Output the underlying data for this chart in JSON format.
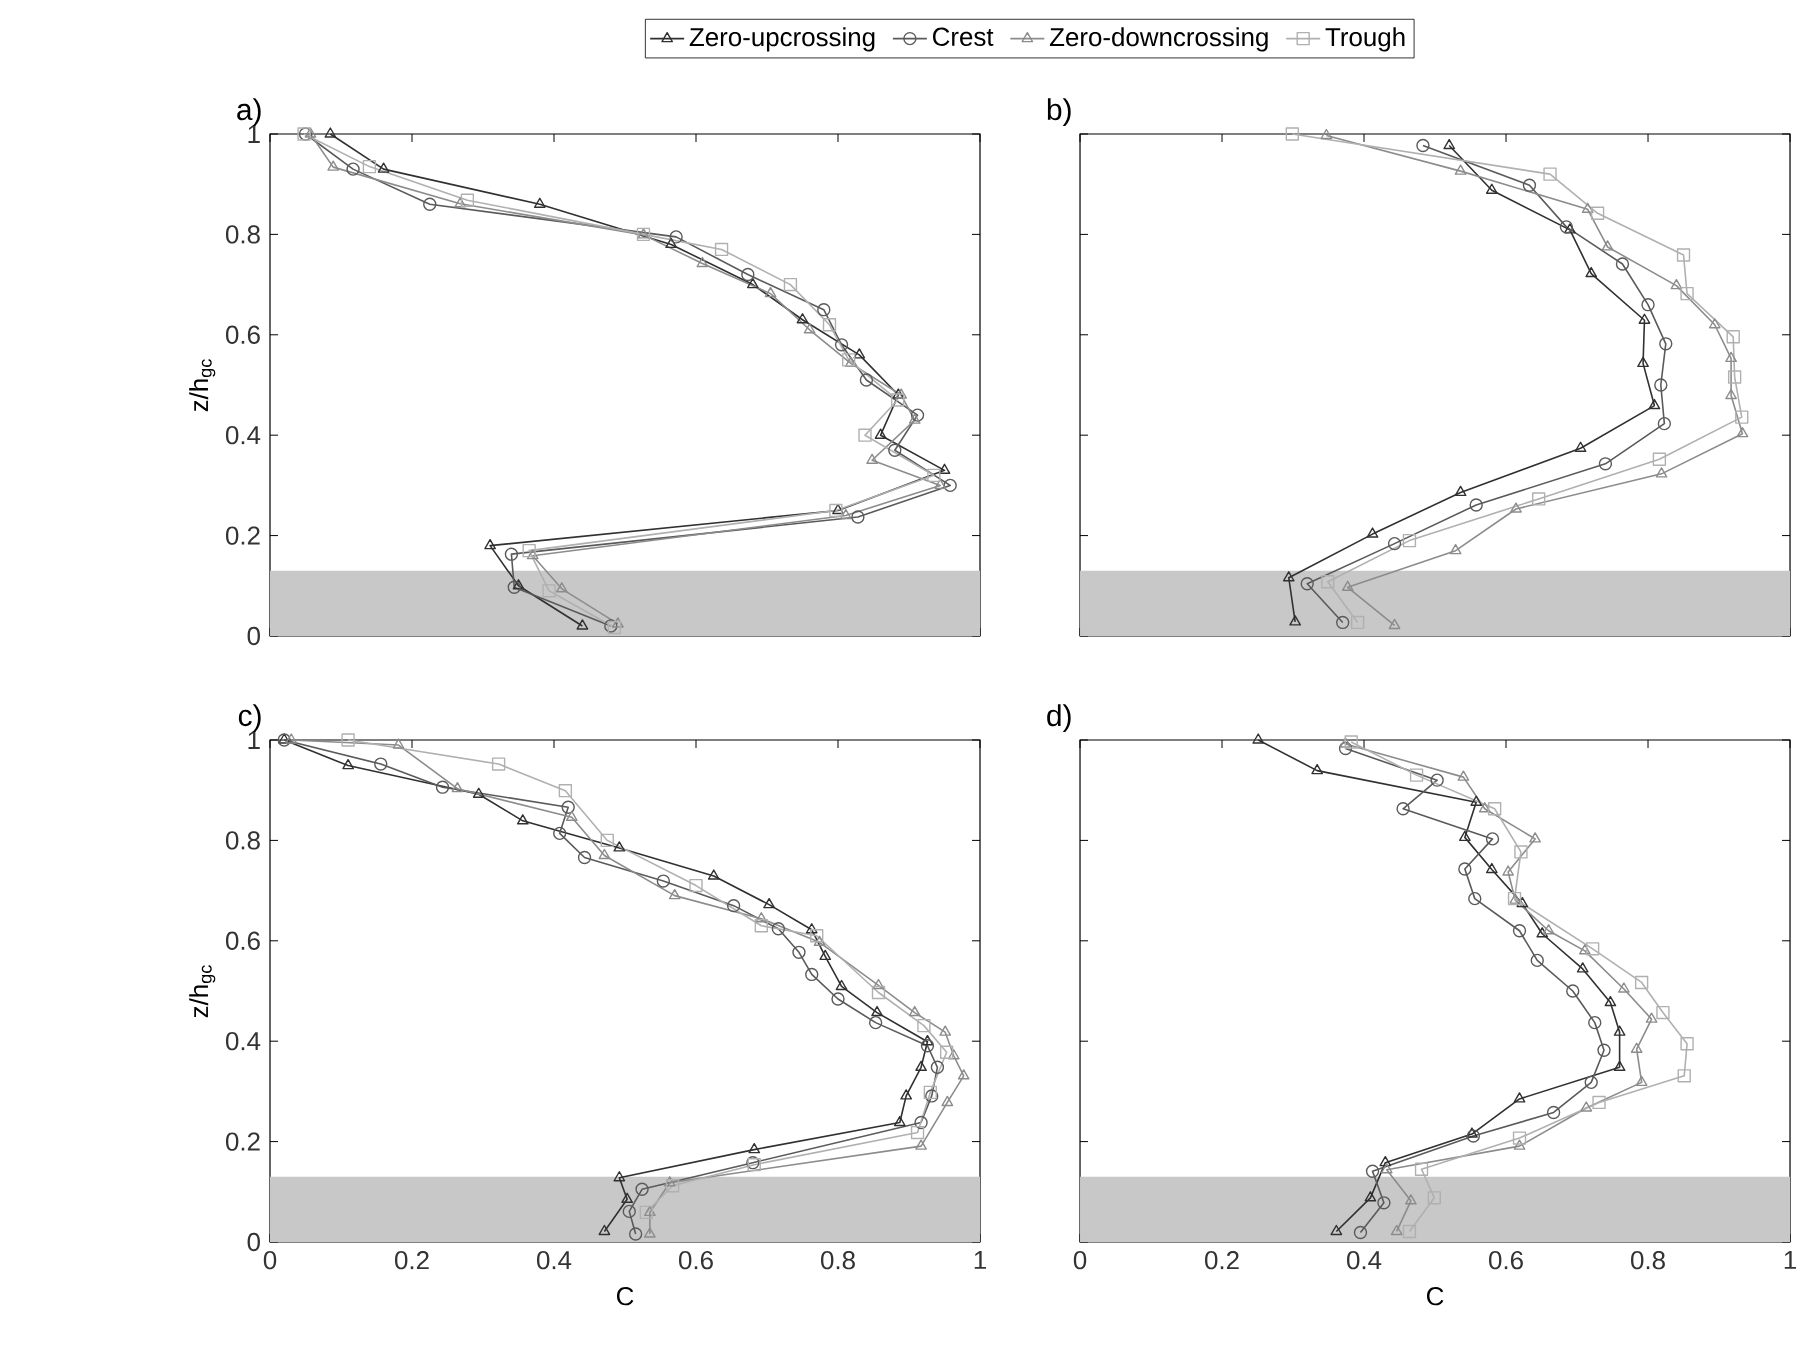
{
  "chart_data": [
    {
      "type": "line",
      "title": "a)",
      "ylabel": "z/h$_{gc}$",
      "xlim": [
        0,
        1
      ],
      "ylim": [
        0,
        1
      ],
      "xticks": [
        0,
        0.2,
        0.4,
        0.6,
        0.8,
        1
      ],
      "yticks": [
        0,
        0.2,
        0.4,
        0.6,
        0.8,
        1
      ],
      "tick_labels": "y",
      "legend": "top",
      "bands": [
        {
          "axis": "y",
          "from": 0,
          "to": 0.13,
          "color": "#c8c8c8"
        }
      ],
      "series": [
        {
          "name": "Zero-upcrossing",
          "color": "#303030",
          "marker": "triangle",
          "x": [
            0.085,
            0.16,
            0.38,
            0.565,
            0.68,
            0.75,
            0.83,
            0.885,
            0.86,
            0.95,
            0.8,
            0.31,
            0.35,
            0.44
          ],
          "values": [
            1.0,
            0.93,
            0.86,
            0.78,
            0.7,
            0.63,
            0.56,
            0.48,
            0.4,
            0.33,
            0.25,
            0.18,
            0.1,
            0.02
          ]
        },
        {
          "name": "Crest",
          "color": "#5a5a5a",
          "marker": "circle",
          "x": [
            0.05,
            0.117,
            0.225,
            0.572,
            0.673,
            0.78,
            0.805,
            0.84,
            0.912,
            0.88,
            0.958,
            0.828,
            0.34,
            0.344,
            0.48
          ],
          "values": [
            1.0,
            0.93,
            0.86,
            0.795,
            0.72,
            0.65,
            0.58,
            0.51,
            0.44,
            0.37,
            0.3,
            0.237,
            0.163,
            0.097,
            0.02
          ]
        },
        {
          "name": "Zero-downcrossing",
          "color": "#8c8c8c",
          "marker": "triangle",
          "x": [
            0.057,
            0.089,
            0.268,
            0.526,
            0.609,
            0.705,
            0.76,
            0.818,
            0.889,
            0.908,
            0.848,
            0.944,
            0.811,
            0.37,
            0.411,
            0.49
          ],
          "values": [
            1.0,
            0.934,
            0.861,
            0.799,
            0.742,
            0.682,
            0.61,
            0.543,
            0.48,
            0.43,
            0.35,
            0.3,
            0.24,
            0.16,
            0.094,
            0.024
          ]
        },
        {
          "name": "Trough",
          "color": "#b0b0b0",
          "marker": "square",
          "x": [
            0.048,
            0.14,
            0.278,
            0.526,
            0.636,
            0.733,
            0.788,
            0.815,
            0.884,
            0.838,
            0.935,
            0.797,
            0.365,
            0.393,
            0.485
          ],
          "values": [
            1.0,
            0.935,
            0.868,
            0.8,
            0.77,
            0.7,
            0.62,
            0.55,
            0.47,
            0.4,
            0.32,
            0.25,
            0.17,
            0.09,
            0.017
          ]
        }
      ]
    },
    {
      "type": "line",
      "title": "b)",
      "xlim": [
        0,
        1
      ],
      "ylim": [
        0,
        1
      ],
      "xticks": [
        0,
        0.2,
        0.4,
        0.6,
        0.8,
        1
      ],
      "yticks": [
        0,
        0.2,
        0.4,
        0.6,
        0.8,
        1
      ],
      "tick_labels": false,
      "bands": [
        {
          "axis": "y",
          "from": 0,
          "to": 0.13,
          "color": "#c8c8c8"
        }
      ],
      "series": [
        {
          "color": "#303030",
          "marker": "triangle",
          "x": [
            0.52,
            0.58,
            0.69,
            0.72,
            0.795,
            0.793,
            0.809,
            0.705,
            0.536,
            0.412,
            0.294,
            0.303
          ],
          "values": [
            0.977,
            0.888,
            0.809,
            0.722,
            0.629,
            0.543,
            0.459,
            0.374,
            0.286,
            0.203,
            0.116,
            0.028
          ]
        },
        {
          "color": "#5a5a5a",
          "marker": "circle",
          "x": [
            0.483,
            0.633,
            0.685,
            0.764,
            0.8,
            0.825,
            0.818,
            0.823,
            0.74,
            0.558,
            0.443,
            0.32,
            0.37
          ],
          "values": [
            0.977,
            0.898,
            0.815,
            0.741,
            0.66,
            0.582,
            0.5,
            0.423,
            0.343,
            0.261,
            0.184,
            0.104,
            0.027
          ]
        },
        {
          "color": "#8c8c8c",
          "marker": "triangle",
          "x": [
            0.347,
            0.536,
            0.715,
            0.743,
            0.84,
            0.894,
            0.917,
            0.917,
            0.933,
            0.819,
            0.614,
            0.529,
            0.377,
            0.443
          ],
          "values": [
            0.997,
            0.926,
            0.85,
            0.775,
            0.698,
            0.62,
            0.553,
            0.479,
            0.403,
            0.323,
            0.253,
            0.17,
            0.097,
            0.021
          ]
        },
        {
          "color": "#b0b0b0",
          "marker": "square",
          "x": [
            0.299,
            0.662,
            0.729,
            0.85,
            0.855,
            0.92,
            0.922,
            0.932,
            0.816,
            0.646,
            0.464,
            0.349,
            0.391
          ],
          "values": [
            1.0,
            0.92,
            0.842,
            0.759,
            0.682,
            0.596,
            0.516,
            0.436,
            0.352,
            0.273,
            0.19,
            0.108,
            0.027
          ]
        }
      ]
    },
    {
      "type": "line",
      "title": "c)",
      "xlabel": "C",
      "ylabel": "z/h$_{gc}$",
      "xlim": [
        0,
        1
      ],
      "ylim": [
        0,
        1
      ],
      "xticks": [
        0,
        0.2,
        0.4,
        0.6,
        0.8,
        1
      ],
      "yticks": [
        0,
        0.2,
        0.4,
        0.6,
        0.8,
        1
      ],
      "bands": [
        {
          "axis": "y",
          "from": 0,
          "to": 0.13,
          "color": "#c8c8c8"
        }
      ],
      "series": [
        {
          "color": "#303030",
          "marker": "triangle",
          "x": [
            0.02,
            0.11,
            0.294,
            0.356,
            0.492,
            0.625,
            0.703,
            0.763,
            0.782,
            0.805,
            0.855,
            0.926,
            0.917,
            0.896,
            0.887,
            0.682,
            0.492,
            0.503,
            0.471
          ],
          "values": [
            1.0,
            0.949,
            0.892,
            0.839,
            0.785,
            0.729,
            0.672,
            0.622,
            0.569,
            0.509,
            0.457,
            0.399,
            0.348,
            0.291,
            0.238,
            0.184,
            0.128,
            0.085,
            0.021
          ]
        },
        {
          "color": "#5a5a5a",
          "marker": "circle",
          "x": [
            0.02,
            0.156,
            0.243,
            0.42,
            0.408,
            0.443,
            0.554,
            0.653,
            0.716,
            0.745,
            0.763,
            0.8,
            0.853,
            0.926,
            0.94,
            0.932,
            0.917,
            0.68,
            0.524,
            0.506,
            0.515
          ],
          "values": [
            1.0,
            0.952,
            0.906,
            0.866,
            0.814,
            0.766,
            0.719,
            0.67,
            0.624,
            0.577,
            0.533,
            0.484,
            0.437,
            0.391,
            0.348,
            0.291,
            0.238,
            0.158,
            0.105,
            0.061,
            0.016
          ]
        },
        {
          "color": "#8c8c8c",
          "marker": "triangle",
          "x": [
            0.03,
            0.181,
            0.264,
            0.425,
            0.471,
            0.57,
            0.692,
            0.774,
            0.857,
            0.908,
            0.951,
            0.963,
            0.977,
            0.954,
            0.917,
            0.563,
            0.535,
            0.535
          ],
          "values": [
            1.0,
            0.99,
            0.903,
            0.846,
            0.77,
            0.69,
            0.644,
            0.597,
            0.511,
            0.457,
            0.418,
            0.371,
            0.331,
            0.278,
            0.191,
            0.118,
            0.059,
            0.016
          ]
        },
        {
          "color": "#b0b0b0",
          "marker": "square",
          "x": [
            0.11,
            0.322,
            0.416,
            0.475,
            0.6,
            0.692,
            0.77,
            0.857,
            0.921,
            0.953,
            0.93,
            0.912,
            0.682,
            0.567,
            0.53
          ],
          "values": [
            1.0,
            0.952,
            0.899,
            0.8,
            0.71,
            0.63,
            0.61,
            0.497,
            0.431,
            0.378,
            0.298,
            0.218,
            0.154,
            0.112,
            0.059
          ]
        }
      ]
    },
    {
      "type": "line",
      "title": "d)",
      "xlabel": "C",
      "xlim": [
        0,
        1
      ],
      "ylim": [
        0,
        1
      ],
      "xticks": [
        0,
        0.2,
        0.4,
        0.6,
        0.8,
        1
      ],
      "yticks": [
        0,
        0.2,
        0.4,
        0.6,
        0.8,
        1
      ],
      "tick_labels": "x",
      "bands": [
        {
          "axis": "y",
          "from": 0,
          "to": 0.13,
          "color": "#c8c8c8"
        }
      ],
      "series": [
        {
          "color": "#303030",
          "marker": "triangle",
          "x": [
            0.251,
            0.334,
            0.558,
            0.542,
            0.58,
            0.623,
            0.651,
            0.708,
            0.747,
            0.76,
            0.76,
            0.619,
            0.552,
            0.43,
            0.409,
            0.361
          ],
          "values": [
            1.0,
            0.939,
            0.876,
            0.806,
            0.742,
            0.674,
            0.614,
            0.544,
            0.477,
            0.418,
            0.348,
            0.285,
            0.215,
            0.158,
            0.088,
            0.021
          ]
        },
        {
          "color": "#5a5a5a",
          "marker": "circle",
          "x": [
            0.374,
            0.503,
            0.455,
            0.581,
            0.542,
            0.556,
            0.619,
            0.644,
            0.694,
            0.725,
            0.738,
            0.72,
            0.667,
            0.554,
            0.412,
            0.428,
            0.395
          ],
          "values": [
            0.983,
            0.92,
            0.863,
            0.803,
            0.743,
            0.684,
            0.62,
            0.561,
            0.5,
            0.437,
            0.382,
            0.318,
            0.258,
            0.211,
            0.141,
            0.078,
            0.019
          ]
        },
        {
          "color": "#8c8c8c",
          "marker": "triangle",
          "x": [
            0.374,
            0.54,
            0.57,
            0.641,
            0.603,
            0.613,
            0.66,
            0.711,
            0.766,
            0.805,
            0.784,
            0.791,
            0.713,
            0.619,
            0.432,
            0.466,
            0.446
          ],
          "values": [
            0.992,
            0.926,
            0.863,
            0.803,
            0.737,
            0.681,
            0.62,
            0.58,
            0.504,
            0.444,
            0.384,
            0.318,
            0.267,
            0.191,
            0.144,
            0.082,
            0.021
          ]
        },
        {
          "color": "#b0b0b0",
          "marker": "square",
          "x": [
            0.382,
            0.474,
            0.584,
            0.621,
            0.612,
            0.722,
            0.791,
            0.821,
            0.855,
            0.851,
            0.731,
            0.619,
            0.481,
            0.499,
            0.464
          ],
          "values": [
            0.996,
            0.93,
            0.863,
            0.777,
            0.684,
            0.584,
            0.517,
            0.457,
            0.395,
            0.331,
            0.278,
            0.207,
            0.145,
            0.088,
            0.021
          ]
        }
      ]
    }
  ]
}
